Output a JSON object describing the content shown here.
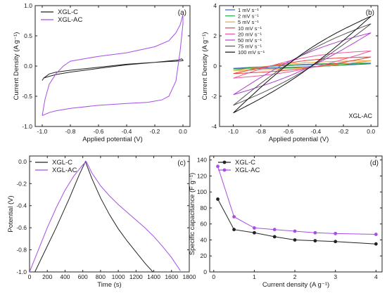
{
  "chart_data": [
    {
      "type": "line",
      "panel": "(a)",
      "xlabel": "Applied potential (V)",
      "ylabel": "Current Density (A g⁻¹)",
      "xlim": [
        -1.05,
        0.05
      ],
      "ylim": [
        -1.0,
        1.0
      ],
      "xticks": [
        -1.0,
        -0.8,
        -0.6,
        -0.4,
        -0.2,
        0.0
      ],
      "xtick_labels": [
        "-1.0",
        "-0.8",
        "-0.6",
        "-0.4",
        "-0.2",
        "0.0"
      ],
      "yticks": [
        -1.0,
        -0.5,
        0.0,
        0.5,
        1.0
      ],
      "ytick_labels": [
        "-1.0",
        "-0.5",
        "0.0",
        "0.5",
        "1.0"
      ],
      "legend_position": "top-left",
      "series": [
        {
          "name": "XGL-C",
          "color": "#222222",
          "x": [
            -1.0,
            -0.99,
            -0.95,
            -0.9,
            -0.8,
            -0.6,
            -0.4,
            -0.2,
            -0.1,
            -0.05,
            -0.02,
            0.0,
            0.0,
            -0.01,
            -0.03,
            -0.1,
            -0.2,
            -0.4,
            -0.6,
            -0.8,
            -0.9,
            -0.95,
            -0.99,
            -1.0
          ],
          "y": [
            -0.24,
            -0.2,
            -0.13,
            -0.1,
            -0.07,
            -0.02,
            0.03,
            0.06,
            0.075,
            0.08,
            0.085,
            0.09,
            0.1,
            0.12,
            0.1,
            0.085,
            0.06,
            0.02,
            -0.04,
            -0.1,
            -0.14,
            -0.17,
            -0.2,
            -0.24
          ]
        },
        {
          "name": "XGL-AC",
          "color": "#a64ee8",
          "x": [
            -1.0,
            -0.98,
            -0.95,
            -0.9,
            -0.85,
            -0.8,
            -0.6,
            -0.4,
            -0.2,
            -0.1,
            -0.05,
            -0.02,
            0.0,
            0.0,
            -0.02,
            -0.05,
            -0.1,
            -0.15,
            -0.2,
            -0.25,
            -0.4,
            -0.6,
            -0.8,
            -0.9,
            -0.95,
            -0.98,
            -1.0
          ],
          "y": [
            -0.82,
            -0.55,
            -0.3,
            -0.12,
            0.0,
            0.08,
            0.16,
            0.22,
            0.32,
            0.42,
            0.55,
            0.68,
            0.85,
            0.7,
            0.25,
            -0.25,
            -0.5,
            -0.56,
            -0.58,
            -0.6,
            -0.62,
            -0.65,
            -0.7,
            -0.74,
            -0.77,
            -0.8,
            -0.82
          ]
        }
      ]
    },
    {
      "type": "line",
      "panel": "(b)",
      "xlabel": "Applied potential (V)",
      "ylabel": "Current Density (A g⁻¹)",
      "xlim": [
        -1.1,
        0.05
      ],
      "ylim": [
        -4,
        4
      ],
      "xticks": [
        -1.0,
        -0.8,
        -0.6,
        -0.4,
        -0.2,
        0.0
      ],
      "xtick_labels": [
        "-1.0",
        "-0.8",
        "-0.6",
        "-0.4",
        "-0.2",
        "0.0"
      ],
      "yticks": [
        -4,
        -2,
        0,
        2,
        4
      ],
      "ytick_labels": [
        "-4",
        "-2",
        "0",
        "2",
        "4"
      ],
      "legend_position": "top-left",
      "annotation": "XGL-AC",
      "series": [
        {
          "name": "1 mV s⁻¹",
          "color": "#3a5fcd",
          "amp": 0.1,
          "end": 0.15,
          "start": -0.15,
          "slope": 0.1
        },
        {
          "name": "2 mV s⁻¹",
          "color": "#2eaa4a",
          "amp": 0.15,
          "end": 0.2,
          "start": -0.2,
          "slope": 0.15
        },
        {
          "name": "5 mV s⁻¹",
          "color": "#e8a33a",
          "amp": 0.25,
          "end": 0.35,
          "start": -0.3,
          "slope": 0.25
        },
        {
          "name": "10 mV s⁻¹",
          "color": "#e84030",
          "amp": 0.4,
          "end": 0.6,
          "start": -0.5,
          "slope": 0.4
        },
        {
          "name": "20 mV s⁻¹",
          "color": "#e85aa0",
          "amp": 0.6,
          "end": 1.0,
          "start": -0.8,
          "slope": 0.6
        },
        {
          "name": "50 mV s⁻¹",
          "color": "#b040d0",
          "amp": 0.8,
          "end": 2.2,
          "start": -1.9,
          "slope": 1.2
        },
        {
          "name": "75 mV s⁻¹",
          "color": "#555555",
          "amp": 0.9,
          "end": 2.8,
          "start": -2.6,
          "slope": 1.9
        },
        {
          "name": "100 mV s⁻¹",
          "color": "#111111",
          "amp": 1.0,
          "end": 3.3,
          "start": -3.1,
          "slope": 2.5
        }
      ]
    },
    {
      "type": "line",
      "panel": "(c)",
      "xlabel": "Time (s)",
      "ylabel": "Potential (V)",
      "xlim": [
        0,
        1800
      ],
      "ylim": [
        -1.0,
        0.05
      ],
      "xticks": [
        0,
        200,
        400,
        600,
        800,
        1000,
        1200,
        1400,
        1600,
        1800
      ],
      "xtick_labels": [
        "0",
        "200",
        "400",
        "600",
        "800",
        "1000",
        "1200",
        "1400",
        "1600",
        "1800"
      ],
      "yticks": [
        -1.0,
        -0.8,
        -0.6,
        -0.4,
        -0.2,
        0.0
      ],
      "ytick_labels": [
        "-1.0",
        "-0.8",
        "-0.6",
        "-0.4",
        "-0.2",
        "0.0"
      ],
      "legend_position": "top-left",
      "series": [
        {
          "name": "XGL-C",
          "color": "#222222",
          "x": [
            60,
            150,
            300,
            450,
            560,
            630,
            700,
            800,
            900,
            1000,
            1100,
            1200,
            1300,
            1390
          ],
          "y": [
            -1.0,
            -0.85,
            -0.6,
            -0.33,
            -0.12,
            0.0,
            -0.15,
            -0.33,
            -0.48,
            -0.61,
            -0.72,
            -0.82,
            -0.92,
            -1.0
          ]
        },
        {
          "name": "XGL-AC",
          "color": "#a64ee8",
          "x": [
            0,
            100,
            200,
            300,
            400,
            500,
            600,
            640,
            700,
            800,
            900,
            1000,
            1100,
            1200,
            1300,
            1400,
            1500,
            1600,
            1700
          ],
          "y": [
            -1.0,
            -0.8,
            -0.6,
            -0.42,
            -0.26,
            -0.13,
            -0.03,
            0.0,
            -0.1,
            -0.22,
            -0.31,
            -0.39,
            -0.46,
            -0.53,
            -0.6,
            -0.68,
            -0.77,
            -0.87,
            -0.99
          ]
        }
      ]
    },
    {
      "type": "line",
      "panel": "(d)",
      "xlabel": "Current density (A g⁻¹)",
      "ylabel": "Specific capacitance (F g⁻¹)",
      "xlim": [
        -0.1,
        4.15
      ],
      "ylim": [
        0,
        145
      ],
      "xticks": [
        0,
        1,
        2,
        3,
        4
      ],
      "xtick_labels": [
        "0",
        "1",
        "2",
        "3",
        "4"
      ],
      "yticks": [
        0,
        20,
        40,
        60,
        80,
        100,
        120,
        140
      ],
      "ytick_labels": [
        "0",
        "20",
        "40",
        "60",
        "80",
        "100",
        "120",
        "140"
      ],
      "legend_position": "top-left",
      "series": [
        {
          "name": "XGL-C",
          "color": "#222222",
          "marker": "circle",
          "x": [
            0.1,
            0.5,
            1.0,
            1.5,
            2.0,
            2.5,
            3.0,
            4.0
          ],
          "y": [
            91,
            53,
            49,
            44,
            40,
            39,
            38,
            35
          ]
        },
        {
          "name": "XGL-AC",
          "color": "#a64ee8",
          "marker": "circle",
          "x": [
            0.1,
            0.5,
            1.0,
            1.5,
            2.0,
            2.5,
            3.0,
            4.0
          ],
          "y": [
            132,
            69,
            55,
            53,
            51,
            49,
            48,
            47
          ]
        }
      ]
    }
  ]
}
